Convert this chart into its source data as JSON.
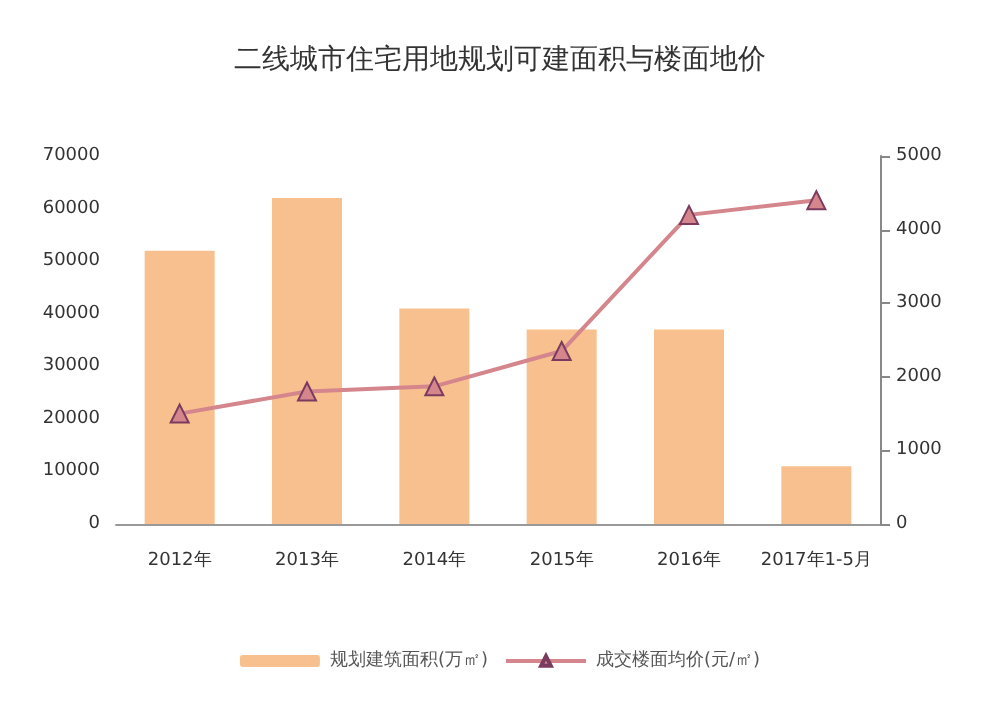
{
  "chart_data": {
    "type": "bar",
    "title": "二线城市住宅用地规划可建面积与楼面地价",
    "categories": [
      "2012年",
      "2013年",
      "2014年",
      "2015年",
      "2016年",
      "2017年1-5月"
    ],
    "series": [
      {
        "name": "规划建筑面积(万㎡)",
        "color": "#f9c08f",
        "values": [
          52000,
          62000,
          41000,
          37000,
          37000,
          11000
        ]
      },
      {
        "name": "成交楼面均价(元/㎡)",
        "type": "line",
        "axis": "y2",
        "color": "#d4868c",
        "values": [
          1500,
          1800,
          1870,
          2350,
          4200,
          4400
        ]
      }
    ],
    "ylim": [
      0,
      70000
    ],
    "yticks": [
      0,
      10000,
      20000,
      30000,
      40000,
      50000,
      60000,
      70000
    ],
    "y2lim": [
      0,
      5000
    ],
    "y2ticks": [
      0,
      1000,
      2000,
      3000,
      4000,
      5000
    ],
    "grid": false,
    "legend": "bottom",
    "marker": "triangle"
  }
}
